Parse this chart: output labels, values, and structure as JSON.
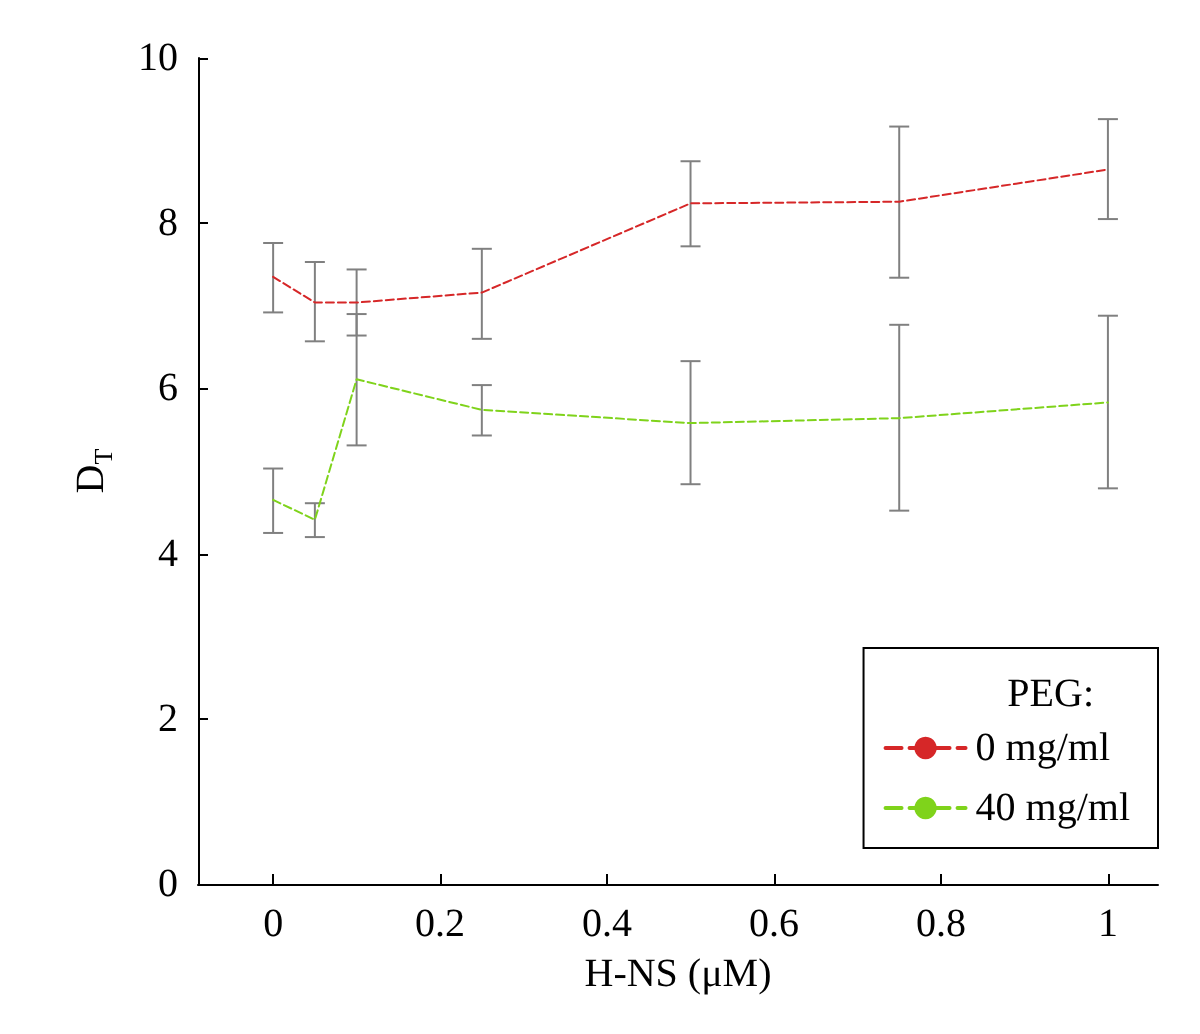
{
  "chart_data": {
    "type": "line",
    "xlabel": "H-NS (μM)",
    "ylabel": "D$_{T}$",
    "legend_title": "PEG:",
    "x": [
      0,
      0.05,
      0.1,
      0.25,
      0.5,
      0.75,
      1
    ],
    "series": [
      {
        "name": "0 mg/ml",
        "color": "#d62728",
        "values": [
          7.35,
          7.04,
          7.04,
          7.16,
          8.24,
          8.26,
          8.65
        ],
        "errors": [
          [
            6.92,
            7.76
          ],
          [
            6.57,
            7.53
          ],
          [
            6.64,
            7.44
          ],
          [
            6.6,
            7.69
          ],
          [
            7.72,
            8.75
          ],
          [
            7.34,
            9.17
          ],
          [
            8.05,
            9.26
          ]
        ]
      },
      {
        "name": "40 mg/ml",
        "color": "#7fd31b",
        "values": [
          4.65,
          4.41,
          6.11,
          5.74,
          5.58,
          5.64,
          5.83
        ],
        "errors": [
          [
            4.25,
            5.03
          ],
          [
            4.2,
            4.61
          ],
          [
            5.31,
            6.9
          ],
          [
            5.43,
            6.04
          ],
          [
            4.84,
            6.33
          ],
          [
            4.52,
            6.77
          ],
          [
            4.79,
            6.88
          ]
        ]
      }
    ],
    "xlim": [
      -0.09,
      1.06
    ],
    "xticks": [
      0,
      0.2,
      0.4,
      0.6,
      0.8,
      1
    ],
    "ylim": [
      0,
      10
    ],
    "yticks": [
      0,
      2,
      4,
      6,
      8,
      10
    ],
    "grid": false,
    "legend": "bottom right",
    "line_style": "dashed"
  }
}
